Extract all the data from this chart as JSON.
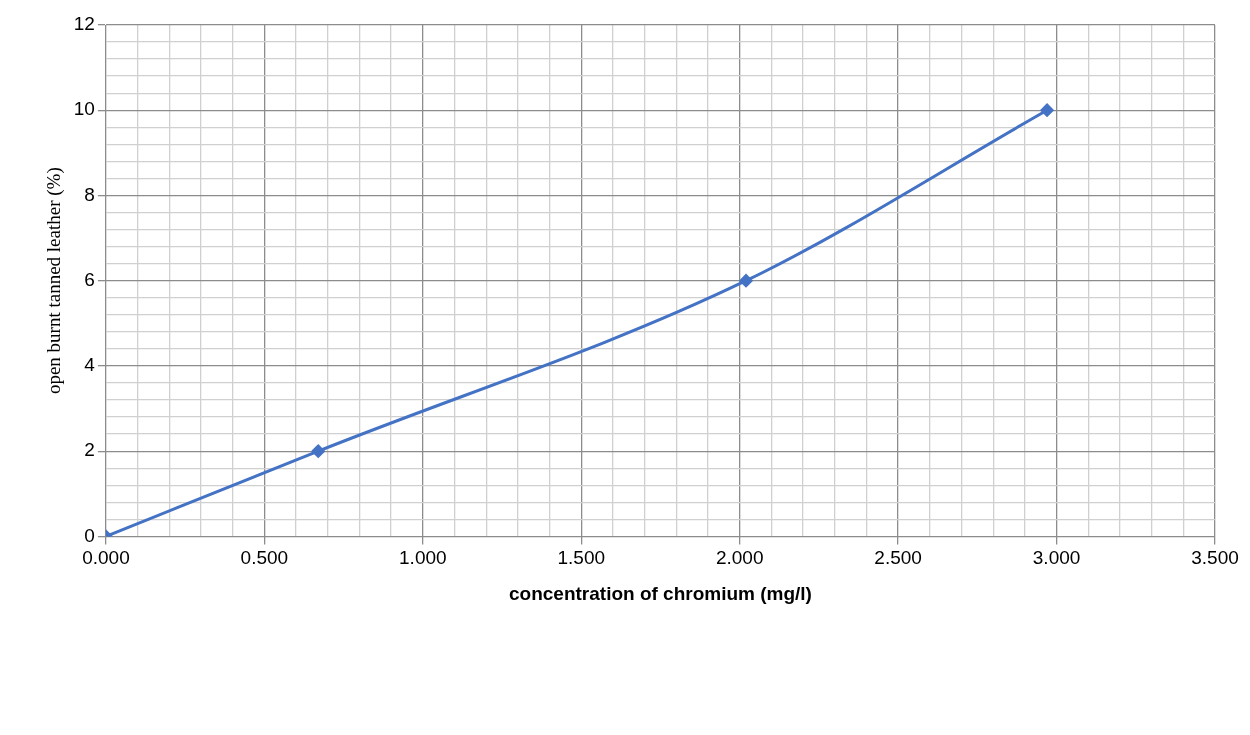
{
  "chart_data": {
    "type": "line",
    "xlabel": "concentration of chromium (mg/l)",
    "ylabel": "open burnt tanned leather (%)",
    "x": [
      0,
      0.67,
      2.02,
      2.97
    ],
    "series": [
      {
        "color": "#4472c4",
        "values": [
          0,
          2,
          6,
          10
        ]
      }
    ],
    "xlim": [
      0,
      3.5
    ],
    "xticks": [
      {
        "value": 0,
        "label": "0.000"
      },
      {
        "value": 0.1,
        "label": null
      },
      {
        "value": 0.2,
        "label": null
      },
      {
        "value": 0.3,
        "label": null
      },
      {
        "value": 0.4,
        "label": null
      },
      {
        "value": 0.5,
        "label": "0.500"
      },
      {
        "value": 0.6,
        "label": null
      },
      {
        "value": 0.7,
        "label": null
      },
      {
        "value": 0.8,
        "label": null
      },
      {
        "value": 0.9,
        "label": null
      },
      {
        "value": 1,
        "label": "1.000"
      },
      {
        "value": 1.1,
        "label": null
      },
      {
        "value": 1.2,
        "label": null
      },
      {
        "value": 1.3,
        "label": null
      },
      {
        "value": 1.4,
        "label": null
      },
      {
        "value": 1.5,
        "label": "1.500"
      },
      {
        "value": 1.6,
        "label": null
      },
      {
        "value": 1.7,
        "label": null
      },
      {
        "value": 1.8,
        "label": null
      },
      {
        "value": 1.9,
        "label": null
      },
      {
        "value": 2,
        "label": "2.000"
      },
      {
        "value": 2.1,
        "label": null
      },
      {
        "value": 2.2,
        "label": null
      },
      {
        "value": 2.3,
        "label": null
      },
      {
        "value": 2.4,
        "label": null
      },
      {
        "value": 2.5,
        "label": "2.500"
      },
      {
        "value": 2.6,
        "label": null
      },
      {
        "value": 2.7,
        "label": null
      },
      {
        "value": 2.8,
        "label": null
      },
      {
        "value": 2.9,
        "label": null
      },
      {
        "value": 3,
        "label": "3.000"
      },
      {
        "value": 3.1,
        "label": null
      },
      {
        "value": 3.2,
        "label": null
      },
      {
        "value": 3.3,
        "label": null
      },
      {
        "value": 3.4,
        "label": null
      },
      {
        "value": 3.5,
        "label": "3.500"
      }
    ],
    "ylim": [
      0,
      12
    ],
    "yticks": [
      0,
      {
        "value": 0.4,
        "label": null
      },
      {
        "value": 0.8,
        "label": null
      },
      {
        "value": 1.2,
        "label": null
      },
      {
        "value": 1.6,
        "label": null
      },
      2,
      {
        "value": 2.4,
        "label": null
      },
      {
        "value": 2.8,
        "label": null
      },
      {
        "value": 3.2,
        "label": null
      },
      {
        "value": 3.6,
        "label": null
      },
      4,
      {
        "value": 4.4,
        "label": null
      },
      {
        "value": 4.8,
        "label": null
      },
      {
        "value": 5.2,
        "label": null
      },
      {
        "value": 5.6,
        "label": null
      },
      6,
      {
        "value": 6.4,
        "label": null
      },
      {
        "value": 6.8,
        "label": null
      },
      {
        "value": 7.2,
        "label": null
      },
      {
        "value": 7.6,
        "label": null
      },
      8,
      {
        "value": 8.4,
        "label": null
      },
      {
        "value": 8.8,
        "label": null
      },
      {
        "value": 9.2,
        "label": null
      },
      {
        "value": 9.6,
        "label": null
      },
      10,
      {
        "value": 10.4,
        "label": null
      },
      {
        "value": 10.8,
        "label": null
      },
      {
        "value": 11.2,
        "label": null
      },
      {
        "value": 11.6,
        "label": null
      },
      12
    ],
    "grid": true,
    "legend": false,
    "marker": "diamond",
    "line_style": "solid"
  }
}
